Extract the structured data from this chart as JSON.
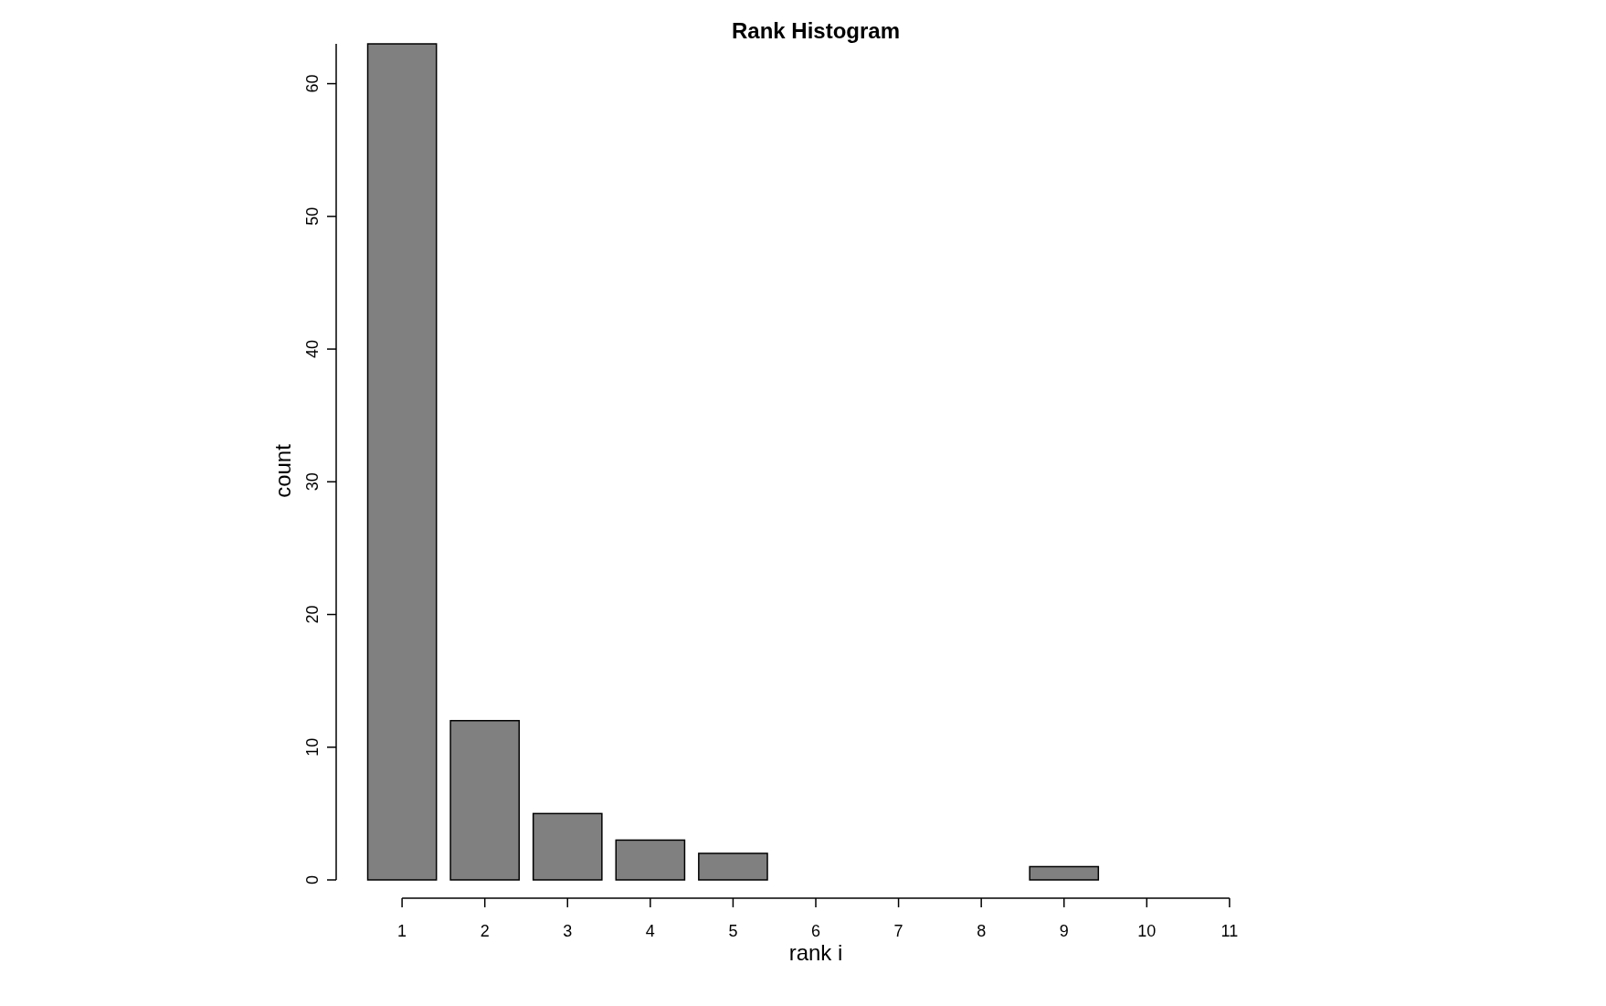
{
  "chart_data": {
    "type": "bar",
    "title": "Rank Histogram",
    "xlabel": "rank i",
    "ylabel": "count",
    "categories": [
      "1",
      "2",
      "3",
      "4",
      "5",
      "6",
      "7",
      "8",
      "9",
      "10",
      "11"
    ],
    "values": [
      63,
      12,
      5,
      3,
      2,
      0,
      0,
      0,
      1,
      0,
      0
    ],
    "color": "#808080",
    "ylim": [
      0,
      63
    ],
    "yticks": [
      0,
      10,
      20,
      30,
      40,
      50,
      60
    ],
    "grid": false
  }
}
